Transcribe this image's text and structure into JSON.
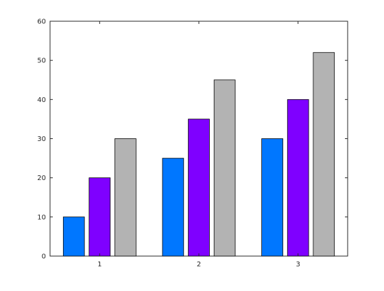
{
  "chart_data": {
    "type": "bar",
    "categories": [
      "1",
      "2",
      "3"
    ],
    "series": [
      {
        "values": [
          10,
          25,
          30
        ],
        "color": "#0077ff"
      },
      {
        "values": [
          20,
          35,
          40
        ],
        "color": "#7f00ff"
      },
      {
        "values": [
          30,
          45,
          52
        ],
        "color": "#b3b3b3"
      }
    ],
    "ylim": [
      0,
      60
    ],
    "y_ticks": [
      0,
      10,
      20,
      30,
      40,
      50,
      60
    ],
    "grid": false,
    "legend": "none"
  }
}
